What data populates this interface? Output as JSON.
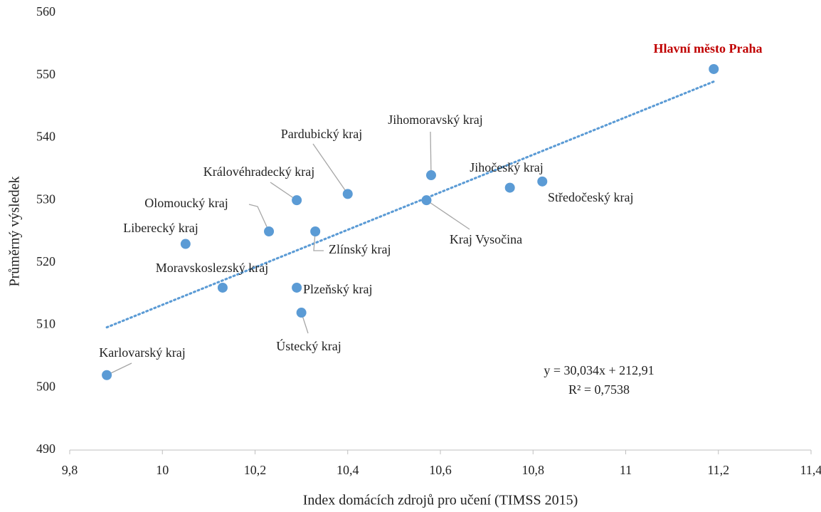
{
  "chart_data": {
    "type": "scatter",
    "x_label": "Index domácích zdrojů pro učení (TIMSS 2015)",
    "y_label": "Průměrný výsledek",
    "xlim": [
      9.8,
      11.4
    ],
    "xticks": [
      {
        "value": 9.8,
        "label": "9,8"
      },
      10,
      {
        "value": 10.2,
        "label": "10,2"
      },
      {
        "value": 10.4,
        "label": "10,4"
      },
      {
        "value": 10.6,
        "label": "10,6"
      },
      {
        "value": 10.8,
        "label": "10,8"
      },
      11,
      {
        "value": 11.2,
        "label": "11,2"
      },
      {
        "value": 11.4,
        "label": "11,4"
      }
    ],
    "ylim": [
      490,
      560
    ],
    "yticks": [
      490,
      500,
      510,
      520,
      530,
      540,
      550,
      560
    ],
    "series": [
      {
        "color": "#5b9bd5",
        "labels": [
          "Karlovarský kraj",
          "Moravskoslezský kraj",
          "Liberecký kraj",
          "Olomoucký kraj",
          "Královéhradecký kraj",
          "Zlínský kraj",
          "Plzeňský kraj",
          "Ústecký kraj",
          "Pardubický kraj",
          "Kraj Vysočina",
          "Jihomoravský kraj",
          "Jihočeský kraj",
          "Středočeský kraj",
          "Hlavní město Praha"
        ],
        "x": [
          9.88,
          10.13,
          10.05,
          10.23,
          10.29,
          10.33,
          10.29,
          10.3,
          10.4,
          10.57,
          10.58,
          10.75,
          10.82,
          11.19
        ],
        "values": [
          502,
          516,
          523,
          525,
          530,
          525,
          516,
          512,
          531,
          530,
          534,
          532,
          533,
          551
        ]
      }
    ],
    "highlight_color": "#c00000",
    "trendline": {
      "slope": 30.034,
      "intercept": 212.91,
      "x": [
        9.88,
        11.19
      ],
      "equation": "y = 30,034x + 212,91",
      "r2": "R² = 0,7538"
    }
  }
}
